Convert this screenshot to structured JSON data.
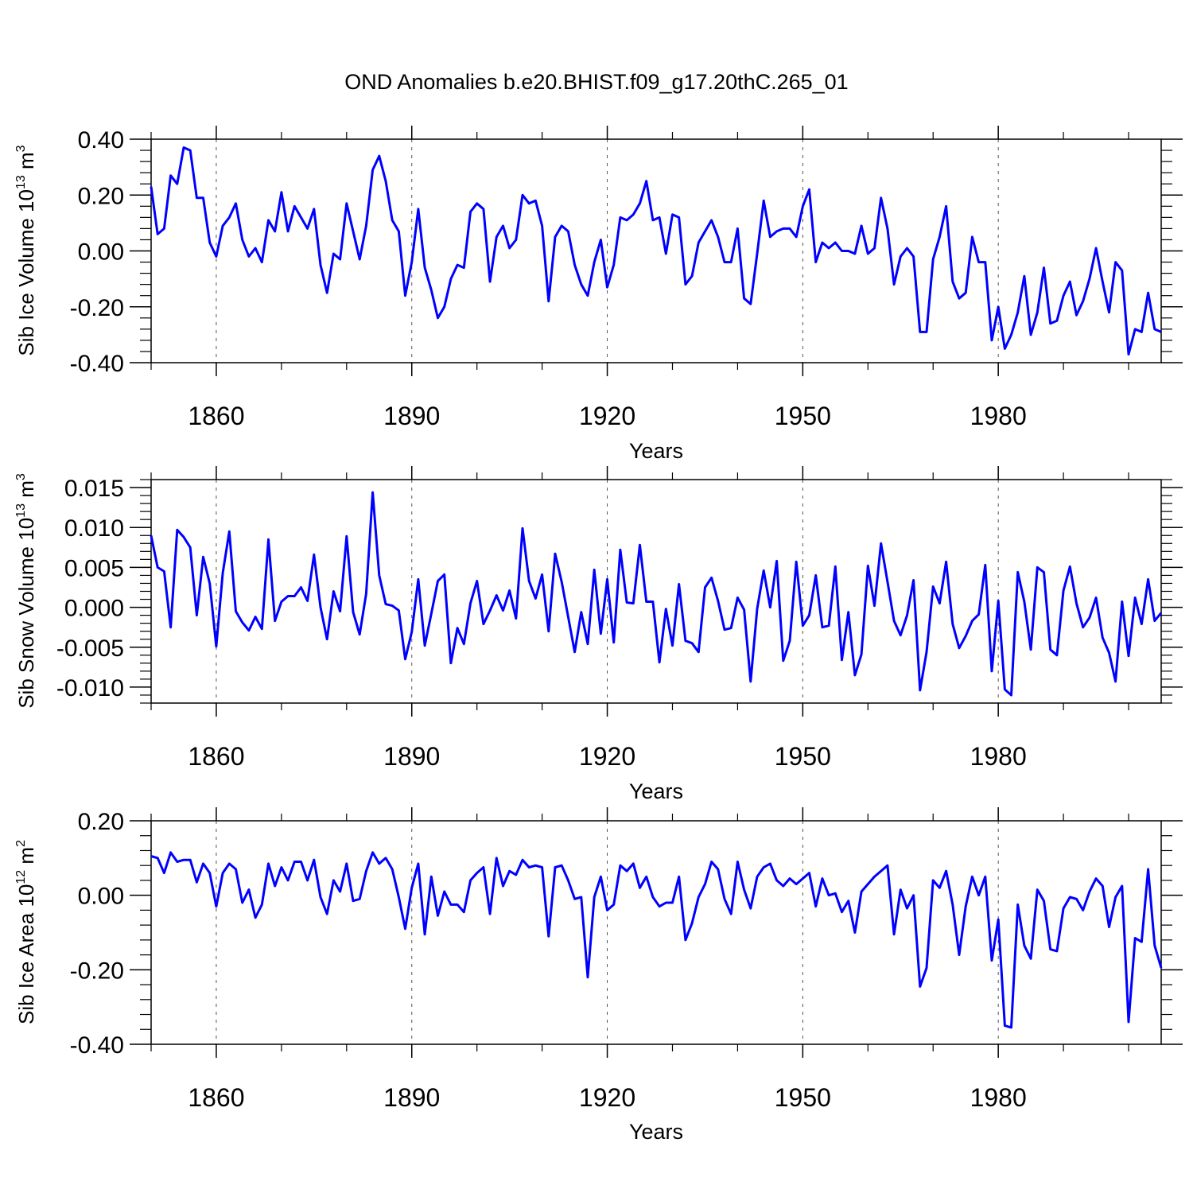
{
  "title": "OND Anomalies b.e20.BHIST.f09_g17.20thC.265_01",
  "colors": {
    "series": "#0000ff",
    "axis": "#000000",
    "grid": "#555555"
  },
  "chart_data": [
    {
      "type": "line",
      "ylabel": "Sib Ice Volume",
      "ylabel_power_base": "10",
      "ylabel_power": "13",
      "ylabel_unit": "m",
      "ylabel_unit_power": "3",
      "xlabel": "Years",
      "xlim": [
        1850,
        2005
      ],
      "ylim": [
        -0.4,
        0.4
      ],
      "yticks": [
        -0.4,
        -0.2,
        0.0,
        0.2,
        0.4
      ],
      "yticklabels": [
        "-0.40",
        "-0.20",
        "0.00",
        "0.20",
        "0.40"
      ],
      "xticks": [
        1860,
        1890,
        1920,
        1950,
        1980
      ],
      "xticklabels": [
        "1860",
        "1890",
        "1920",
        "1950",
        "1980"
      ],
      "x_start": 1850,
      "values": [
        0.23,
        0.06,
        0.08,
        0.27,
        0.24,
        0.37,
        0.36,
        0.19,
        0.19,
        0.03,
        -0.02,
        0.09,
        0.12,
        0.17,
        0.04,
        -0.02,
        0.01,
        -0.04,
        0.11,
        0.07,
        0.21,
        0.07,
        0.16,
        0.12,
        0.08,
        0.15,
        -0.05,
        -0.15,
        -0.01,
        -0.03,
        0.17,
        0.07,
        -0.03,
        0.09,
        0.29,
        0.34,
        0.25,
        0.11,
        0.07,
        -0.16,
        -0.04,
        0.15,
        -0.06,
        -0.14,
        -0.24,
        -0.2,
        -0.1,
        -0.05,
        -0.06,
        0.14,
        0.17,
        0.15,
        -0.11,
        0.05,
        0.09,
        0.01,
        0.04,
        0.2,
        0.17,
        0.18,
        0.09,
        -0.18,
        0.05,
        0.09,
        0.07,
        -0.05,
        -0.12,
        -0.16,
        -0.04,
        0.04,
        -0.13,
        -0.05,
        0.12,
        0.11,
        0.13,
        0.17,
        0.25,
        0.11,
        0.12,
        -0.01,
        0.13,
        0.12,
        -0.12,
        -0.09,
        0.03,
        0.07,
        0.11,
        0.05,
        -0.04,
        -0.04,
        0.08,
        -0.17,
        -0.19,
        -0.01,
        0.18,
        0.05,
        0.07,
        0.08,
        0.08,
        0.05,
        0.16,
        0.22,
        -0.04,
        0.03,
        0.01,
        0.03,
        0.0,
        0.0,
        -0.01,
        0.09,
        -0.01,
        0.01,
        0.19,
        0.08,
        -0.12,
        -0.02,
        0.01,
        -0.02,
        -0.29,
        -0.29,
        -0.03,
        0.05,
        0.16,
        -0.11,
        -0.17,
        -0.15,
        0.05,
        -0.04,
        -0.04,
        -0.32,
        -0.2,
        -0.35,
        -0.3,
        -0.22,
        -0.09,
        -0.3,
        -0.22,
        -0.06,
        -0.26,
        -0.25,
        -0.16,
        -0.11,
        -0.23,
        -0.18,
        -0.1,
        0.01,
        -0.11,
        -0.22,
        -0.04,
        -0.07,
        -0.37,
        -0.28,
        -0.29,
        -0.15,
        -0.28,
        -0.29
      ]
    },
    {
      "type": "line",
      "ylabel": "Sib Snow Volume",
      "ylabel_power_base": "10",
      "ylabel_power": "13",
      "ylabel_unit": "m",
      "ylabel_unit_power": "3",
      "xlabel": "Years",
      "xlim": [
        1850,
        2005
      ],
      "ylim": [
        -0.012,
        0.016
      ],
      "yticks": [
        -0.01,
        -0.005,
        0.0,
        0.005,
        0.01,
        0.015
      ],
      "yticklabels": [
        "-0.010",
        "-0.005",
        "0.000",
        "0.005",
        "0.010",
        "0.015"
      ],
      "xticks": [
        1860,
        1890,
        1920,
        1950,
        1980
      ],
      "xticklabels": [
        "1860",
        "1890",
        "1920",
        "1950",
        "1980"
      ],
      "x_start": 1850,
      "values": [
        0.009,
        0.005,
        0.0045,
        -0.0025,
        0.0097,
        0.0088,
        0.0075,
        -0.001,
        0.0063,
        0.003,
        -0.0049,
        0.0043,
        0.0095,
        -0.0005,
        -0.0019,
        -0.0029,
        -0.0012,
        -0.0027,
        0.0085,
        -0.0017,
        0.0007,
        0.0014,
        0.0014,
        0.0025,
        0.0008,
        0.0066,
        0.0,
        -0.004,
        0.002,
        -0.0005,
        0.0089,
        -0.0006,
        -0.0034,
        0.0017,
        0.0144,
        0.004,
        0.0004,
        0.0002,
        -0.0004,
        -0.0065,
        -0.0031,
        0.0035,
        -0.0048,
        -0.0008,
        0.0033,
        0.0041,
        -0.007,
        -0.0026,
        -0.0046,
        0.0005,
        0.0033,
        -0.0021,
        -0.0004,
        0.0015,
        -0.0004,
        0.0021,
        -0.0014,
        0.0099,
        0.0033,
        0.0011,
        0.0041,
        -0.003,
        0.0067,
        0.0032,
        -0.0012,
        -0.0056,
        -0.0006,
        -0.0046,
        0.0047,
        -0.0033,
        0.0035,
        -0.0044,
        0.0072,
        0.0006,
        0.0005,
        0.0078,
        0.0007,
        0.0007,
        -0.0069,
        -0.0002,
        -0.0048,
        0.0029,
        -0.0042,
        -0.0045,
        -0.0056,
        0.0025,
        0.0037,
        0.0008,
        -0.0028,
        -0.0026,
        0.0012,
        -0.0003,
        -0.0093,
        -0.0002,
        0.0046,
        0.0,
        0.0058,
        -0.0067,
        -0.0042,
        0.0057,
        -0.0023,
        -0.001,
        0.004,
        -0.0025,
        -0.0023,
        0.0051,
        -0.0066,
        -0.0006,
        -0.0085,
        -0.0059,
        0.0052,
        0.0002,
        0.008,
        0.0032,
        -0.0017,
        -0.0035,
        -0.001,
        0.0034,
        -0.0104,
        -0.0056,
        0.0026,
        0.0005,
        0.0057,
        -0.0021,
        -0.0051,
        -0.0036,
        -0.0017,
        -0.0009,
        0.0053,
        -0.008,
        0.0008,
        -0.0103,
        -0.011,
        0.0044,
        0.0007,
        -0.0053,
        0.005,
        0.0044,
        -0.0053,
        -0.006,
        0.0021,
        0.0051,
        0.0005,
        -0.0025,
        -0.0013,
        0.0012,
        -0.0038,
        -0.0057,
        -0.0093,
        0.0007,
        -0.0061,
        0.0012,
        -0.0021,
        0.0035,
        -0.0017,
        -0.0007
      ]
    },
    {
      "type": "line",
      "ylabel": "Sib Ice Area",
      "ylabel_power_base": "10",
      "ylabel_power": "12",
      "ylabel_unit": "m",
      "ylabel_unit_power": "2",
      "xlabel": "Years",
      "xlim": [
        1850,
        2005
      ],
      "ylim": [
        -0.4,
        0.2
      ],
      "yticks": [
        -0.4,
        -0.2,
        0.0,
        0.2
      ],
      "yticklabels": [
        "-0.40",
        "-0.20",
        "0.00",
        "0.20"
      ],
      "xticks": [
        1860,
        1890,
        1920,
        1950,
        1980
      ],
      "xticklabels": [
        "1860",
        "1890",
        "1920",
        "1950",
        "1980"
      ],
      "x_start": 1850,
      "values": [
        0.105,
        0.1,
        0.06,
        0.115,
        0.09,
        0.095,
        0.095,
        0.035,
        0.085,
        0.06,
        -0.03,
        0.06,
        0.085,
        0.07,
        -0.02,
        0.015,
        -0.06,
        -0.025,
        0.085,
        0.025,
        0.075,
        0.04,
        0.09,
        0.09,
        0.04,
        0.095,
        -0.005,
        -0.05,
        0.04,
        0.01,
        0.085,
        -0.015,
        -0.01,
        0.065,
        0.115,
        0.085,
        0.1,
        0.07,
        -0.005,
        -0.09,
        0.02,
        0.085,
        -0.105,
        0.05,
        -0.055,
        0.01,
        -0.025,
        -0.025,
        -0.045,
        0.04,
        0.06,
        0.075,
        -0.05,
        0.1,
        0.025,
        0.065,
        0.055,
        0.095,
        0.075,
        0.08,
        0.075,
        -0.11,
        0.075,
        0.08,
        0.04,
        -0.01,
        -0.005,
        -0.22,
        -0.005,
        0.05,
        -0.04,
        -0.025,
        0.08,
        0.065,
        0.085,
        0.02,
        0.05,
        -0.005,
        -0.03,
        -0.02,
        -0.02,
        0.05,
        -0.12,
        -0.075,
        -0.005,
        0.03,
        0.09,
        0.07,
        -0.01,
        -0.05,
        0.09,
        0.015,
        -0.035,
        0.05,
        0.075,
        0.085,
        0.04,
        0.025,
        0.045,
        0.03,
        0.045,
        0.06,
        -0.03,
        0.045,
        0.0,
        0.005,
        -0.045,
        -0.015,
        -0.1,
        0.01,
        0.03,
        0.05,
        0.065,
        0.08,
        -0.105,
        0.015,
        -0.035,
        0.0,
        -0.245,
        -0.195,
        0.04,
        0.02,
        0.065,
        -0.025,
        -0.16,
        -0.03,
        0.05,
        0.0,
        0.05,
        -0.175,
        -0.065,
        -0.35,
        -0.355,
        -0.025,
        -0.135,
        -0.17,
        0.015,
        -0.015,
        -0.145,
        -0.15,
        -0.035,
        -0.005,
        -0.01,
        -0.04,
        0.01,
        0.045,
        0.025,
        -0.085,
        -0.005,
        0.025,
        -0.34,
        -0.115,
        -0.125,
        0.07,
        -0.135,
        -0.195
      ]
    }
  ]
}
